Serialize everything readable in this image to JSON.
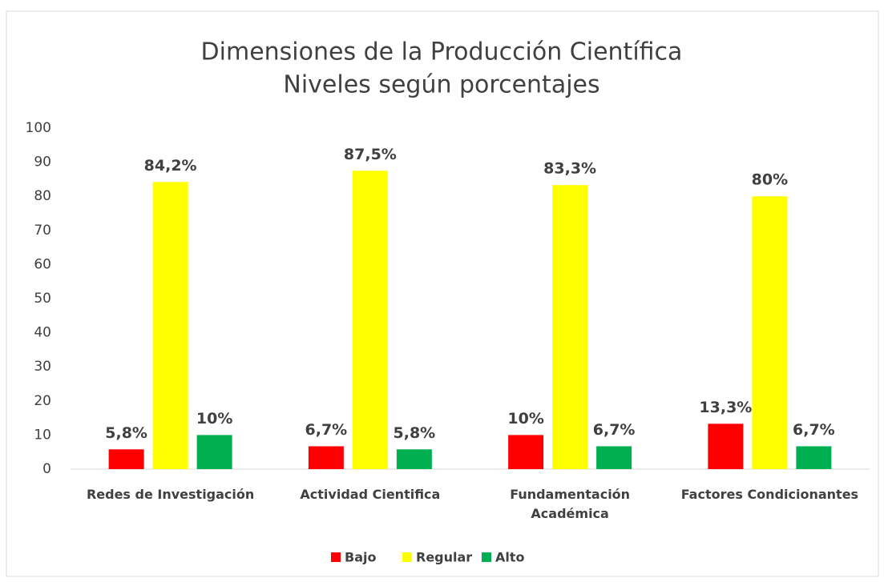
{
  "chart_data": {
    "type": "bar",
    "title": "Dimensiones de la Producción Científica",
    "subtitle": "Niveles según porcentajes",
    "categories": [
      "Redes de Investigación",
      "Actividad Cientifica",
      "Fundamentación Académica",
      "Factores Condicionantes"
    ],
    "series": [
      {
        "name": "Bajo",
        "color": "#ff0000",
        "values": [
          5.8,
          6.7,
          10,
          13.3
        ],
        "value_labels": [
          "5,8%",
          "6,7%",
          "10%",
          "13,3%"
        ]
      },
      {
        "name": "Regular",
        "color": "#ffff00",
        "values": [
          84.2,
          87.5,
          83.3,
          80
        ],
        "value_labels": [
          "84,2%",
          "87,5%",
          "83,3%",
          "80%"
        ]
      },
      {
        "name": "Alto",
        "color": "#00b050",
        "values": [
          10,
          5.8,
          6.7,
          6.7
        ],
        "value_labels": [
          "10%",
          "5,8%",
          "6,7%",
          "6,7%"
        ]
      }
    ],
    "ylim": [
      0,
      100
    ],
    "yticks": [
      0,
      10,
      20,
      30,
      40,
      50,
      60,
      70,
      80,
      90,
      100
    ],
    "grid": false,
    "legend": "bottom"
  }
}
